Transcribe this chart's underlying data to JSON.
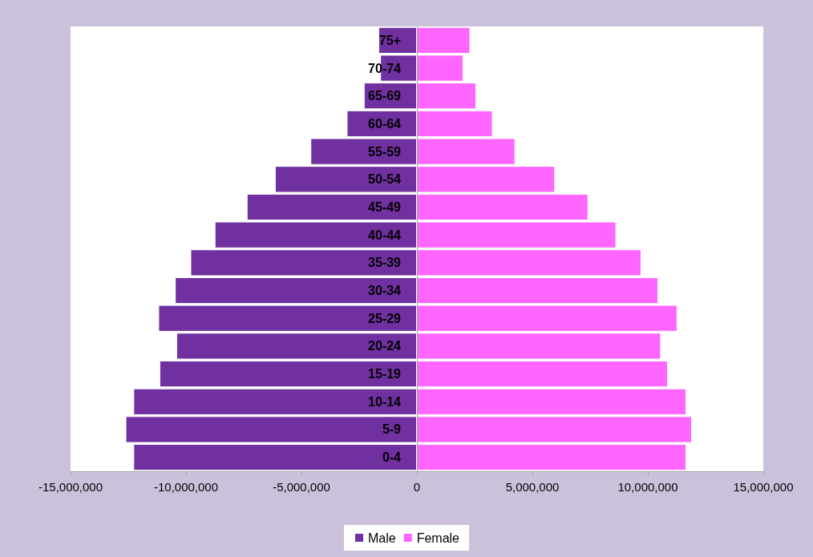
{
  "chart_data": {
    "type": "bar",
    "orientation": "horizontal",
    "categories": [
      "75+",
      "70-74",
      "65-69",
      "60-64",
      "55-59",
      "50-54",
      "45-49",
      "40-44",
      "35-39",
      "30-34",
      "25-29",
      "20-24",
      "15-19",
      "10-14",
      "5-9",
      "0-4"
    ],
    "series": [
      {
        "name": "Male",
        "color": "#7030a0",
        "values": [
          -1670000,
          -1590000,
          -2300000,
          -3040000,
          -4610000,
          -6150000,
          -7370000,
          -8760000,
          -9810000,
          -10480000,
          -11200000,
          -10420000,
          -11150000,
          -12280000,
          -12620000,
          -12280000
        ]
      },
      {
        "name": "Female",
        "color": "#ff66ff",
        "values": [
          2310000,
          2010000,
          2570000,
          3280000,
          4260000,
          5980000,
          7420000,
          8630000,
          9720000,
          10450000,
          11280000,
          10570000,
          10870000,
          11670000,
          11910000,
          11670000
        ]
      }
    ],
    "stacked": true,
    "xlim": [
      -15000000,
      15000000
    ],
    "xticks": [
      {
        "value": -15000000,
        "label": "-15,000,000"
      },
      {
        "value": -10000000,
        "label": "-10,000,000"
      },
      {
        "value": -5000000,
        "label": "-5,000,000"
      },
      0,
      {
        "value": 5000000,
        "label": "5,000,000"
      },
      {
        "value": 10000000,
        "label": "10,000,000"
      },
      {
        "value": 15000000,
        "label": "15,000,000"
      }
    ],
    "legend": "bottom"
  }
}
